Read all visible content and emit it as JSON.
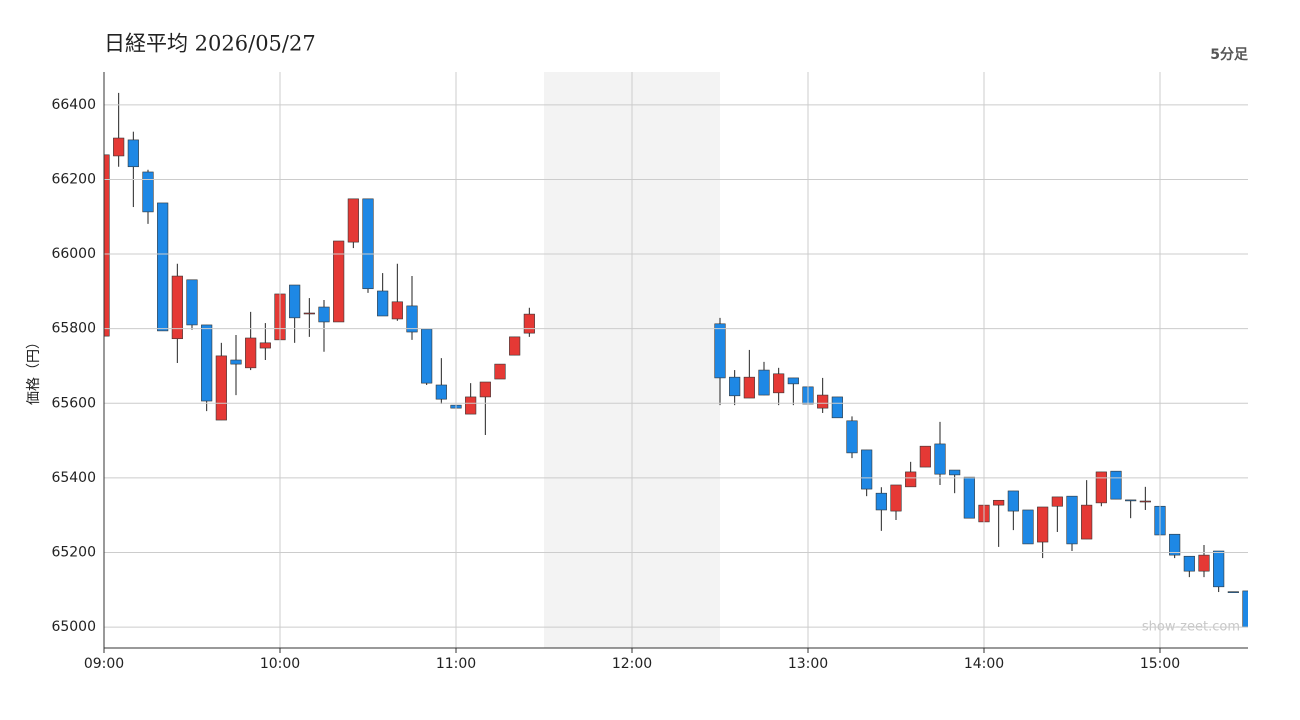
{
  "chart_data": {
    "type": "candlestick",
    "title": "日経平均 2026/05/27",
    "interval_label": "5分足",
    "y_label": "価格（円）",
    "watermark": "show-zeet.com",
    "xlim": [
      "09:00",
      "15:30"
    ],
    "xticks": [
      "09:00",
      "10:00",
      "11:00",
      "12:00",
      "13:00",
      "14:00",
      "15:00"
    ],
    "ylim": [
      64944,
      66488
    ],
    "yticks": [
      65000,
      65200,
      65400,
      65600,
      65800,
      66000,
      66200,
      66400
    ],
    "grid": true,
    "break": [
      "11:30",
      "12:30"
    ],
    "up_color": "#e53935",
    "down_color": "#1e88e5",
    "x": [
      "09:00",
      "09:05",
      "09:10",
      "09:15",
      "09:20",
      "09:25",
      "09:30",
      "09:35",
      "09:40",
      "09:45",
      "09:50",
      "09:55",
      "10:00",
      "10:05",
      "10:10",
      "10:15",
      "10:20",
      "10:25",
      "10:30",
      "10:35",
      "10:40",
      "10:45",
      "10:50",
      "10:55",
      "11:00",
      "11:05",
      "11:10",
      "11:15",
      "11:20",
      "11:25",
      "12:30",
      "12:35",
      "12:40",
      "12:45",
      "12:50",
      "12:55",
      "13:00",
      "13:05",
      "13:10",
      "13:15",
      "13:20",
      "13:25",
      "13:30",
      "13:35",
      "13:40",
      "13:45",
      "13:50",
      "13:55",
      "14:00",
      "14:05",
      "14:10",
      "14:15",
      "14:20",
      "14:25",
      "14:30",
      "14:35",
      "14:40",
      "14:45",
      "14:50",
      "14:55",
      "15:00",
      "15:05",
      "15:10",
      "15:15",
      "15:20",
      "15:25",
      "15:30"
    ],
    "open": [
      65780,
      66263,
      66306,
      66220,
      66137,
      65773,
      65931,
      65810,
      65555,
      65716,
      65695,
      65748,
      65770,
      65917,
      65842,
      65858,
      65818,
      66032,
      66148,
      65901,
      65826,
      65861,
      65799,
      65649,
      65595,
      65571,
      65617,
      65665,
      65729,
      65788,
      65813,
      65670,
      65614,
      65689,
      65628,
      65668,
      65644,
      65587,
      65617,
      65553,
      65475,
      65359,
      65311,
      65376,
      65429,
      65491,
      65421,
      65402,
      65282,
      65327,
      65365,
      65314,
      65228,
      65324,
      65351,
      65236,
      65333,
      65418,
      65341,
      65338,
      65324,
      65249,
      65190,
      65150,
      65204,
      65095,
      65097
    ],
    "high": [
      66266,
      66432,
      66328,
      66226,
      66137,
      65974,
      65931,
      65810,
      65762,
      65783,
      65845,
      65815,
      65925,
      65917,
      65882,
      65877,
      66035,
      66148,
      66148,
      65949,
      65974,
      65941,
      65799,
      65721,
      65649,
      65654,
      65657,
      65705,
      65778,
      65856,
      65829,
      65689,
      65743,
      65711,
      65695,
      65668,
      65676,
      65668,
      65617,
      65565,
      65475,
      65375,
      65381,
      65443,
      65485,
      65550,
      65421,
      65402,
      65327,
      65340,
      65365,
      65314,
      65322,
      65349,
      65351,
      65394,
      65416,
      65418,
      65341,
      65376,
      65351,
      65249,
      65190,
      65220,
      65204,
      65095,
      65097
    ],
    "low": [
      65780,
      66234,
      66126,
      66081,
      65794,
      65708,
      65797,
      65579,
      65555,
      65622,
      65689,
      65716,
      65716,
      65762,
      65778,
      65738,
      65818,
      66016,
      65896,
      65834,
      65821,
      65770,
      65649,
      65598,
      65555,
      65571,
      65515,
      65665,
      65729,
      65778,
      65595,
      65595,
      65614,
      65622,
      65595,
      65595,
      65553,
      65574,
      65561,
      65453,
      65351,
      65258,
      65287,
      65376,
      65429,
      65381,
      65359,
      65292,
      65215,
      65215,
      65260,
      65223,
      65185,
      65255,
      65204,
      65236,
      65324,
      65343,
      65292,
      65314,
      65247,
      65185,
      65134,
      65134,
      65094,
      65094,
      65000
    ],
    "close": [
      66266,
      66311,
      66234,
      66113,
      65794,
      65941,
      65810,
      65606,
      65727,
      65705,
      65775,
      65762,
      65893,
      65829,
      65842,
      65818,
      66035,
      66148,
      65907,
      65834,
      65872,
      65791,
      65654,
      65611,
      65587,
      65617,
      65657,
      65705,
      65778,
      65839,
      65668,
      65620,
      65670,
      65622,
      65679,
      65652,
      65598,
      65622,
      65561,
      65467,
      65370,
      65314,
      65381,
      65416,
      65485,
      65410,
      65408,
      65292,
      65327,
      65340,
      65311,
      65223,
      65322,
      65349,
      65223,
      65327,
      65416,
      65343,
      65340,
      65338,
      65247,
      65193,
      65150,
      65193,
      65108,
      65094,
      65000
    ]
  }
}
